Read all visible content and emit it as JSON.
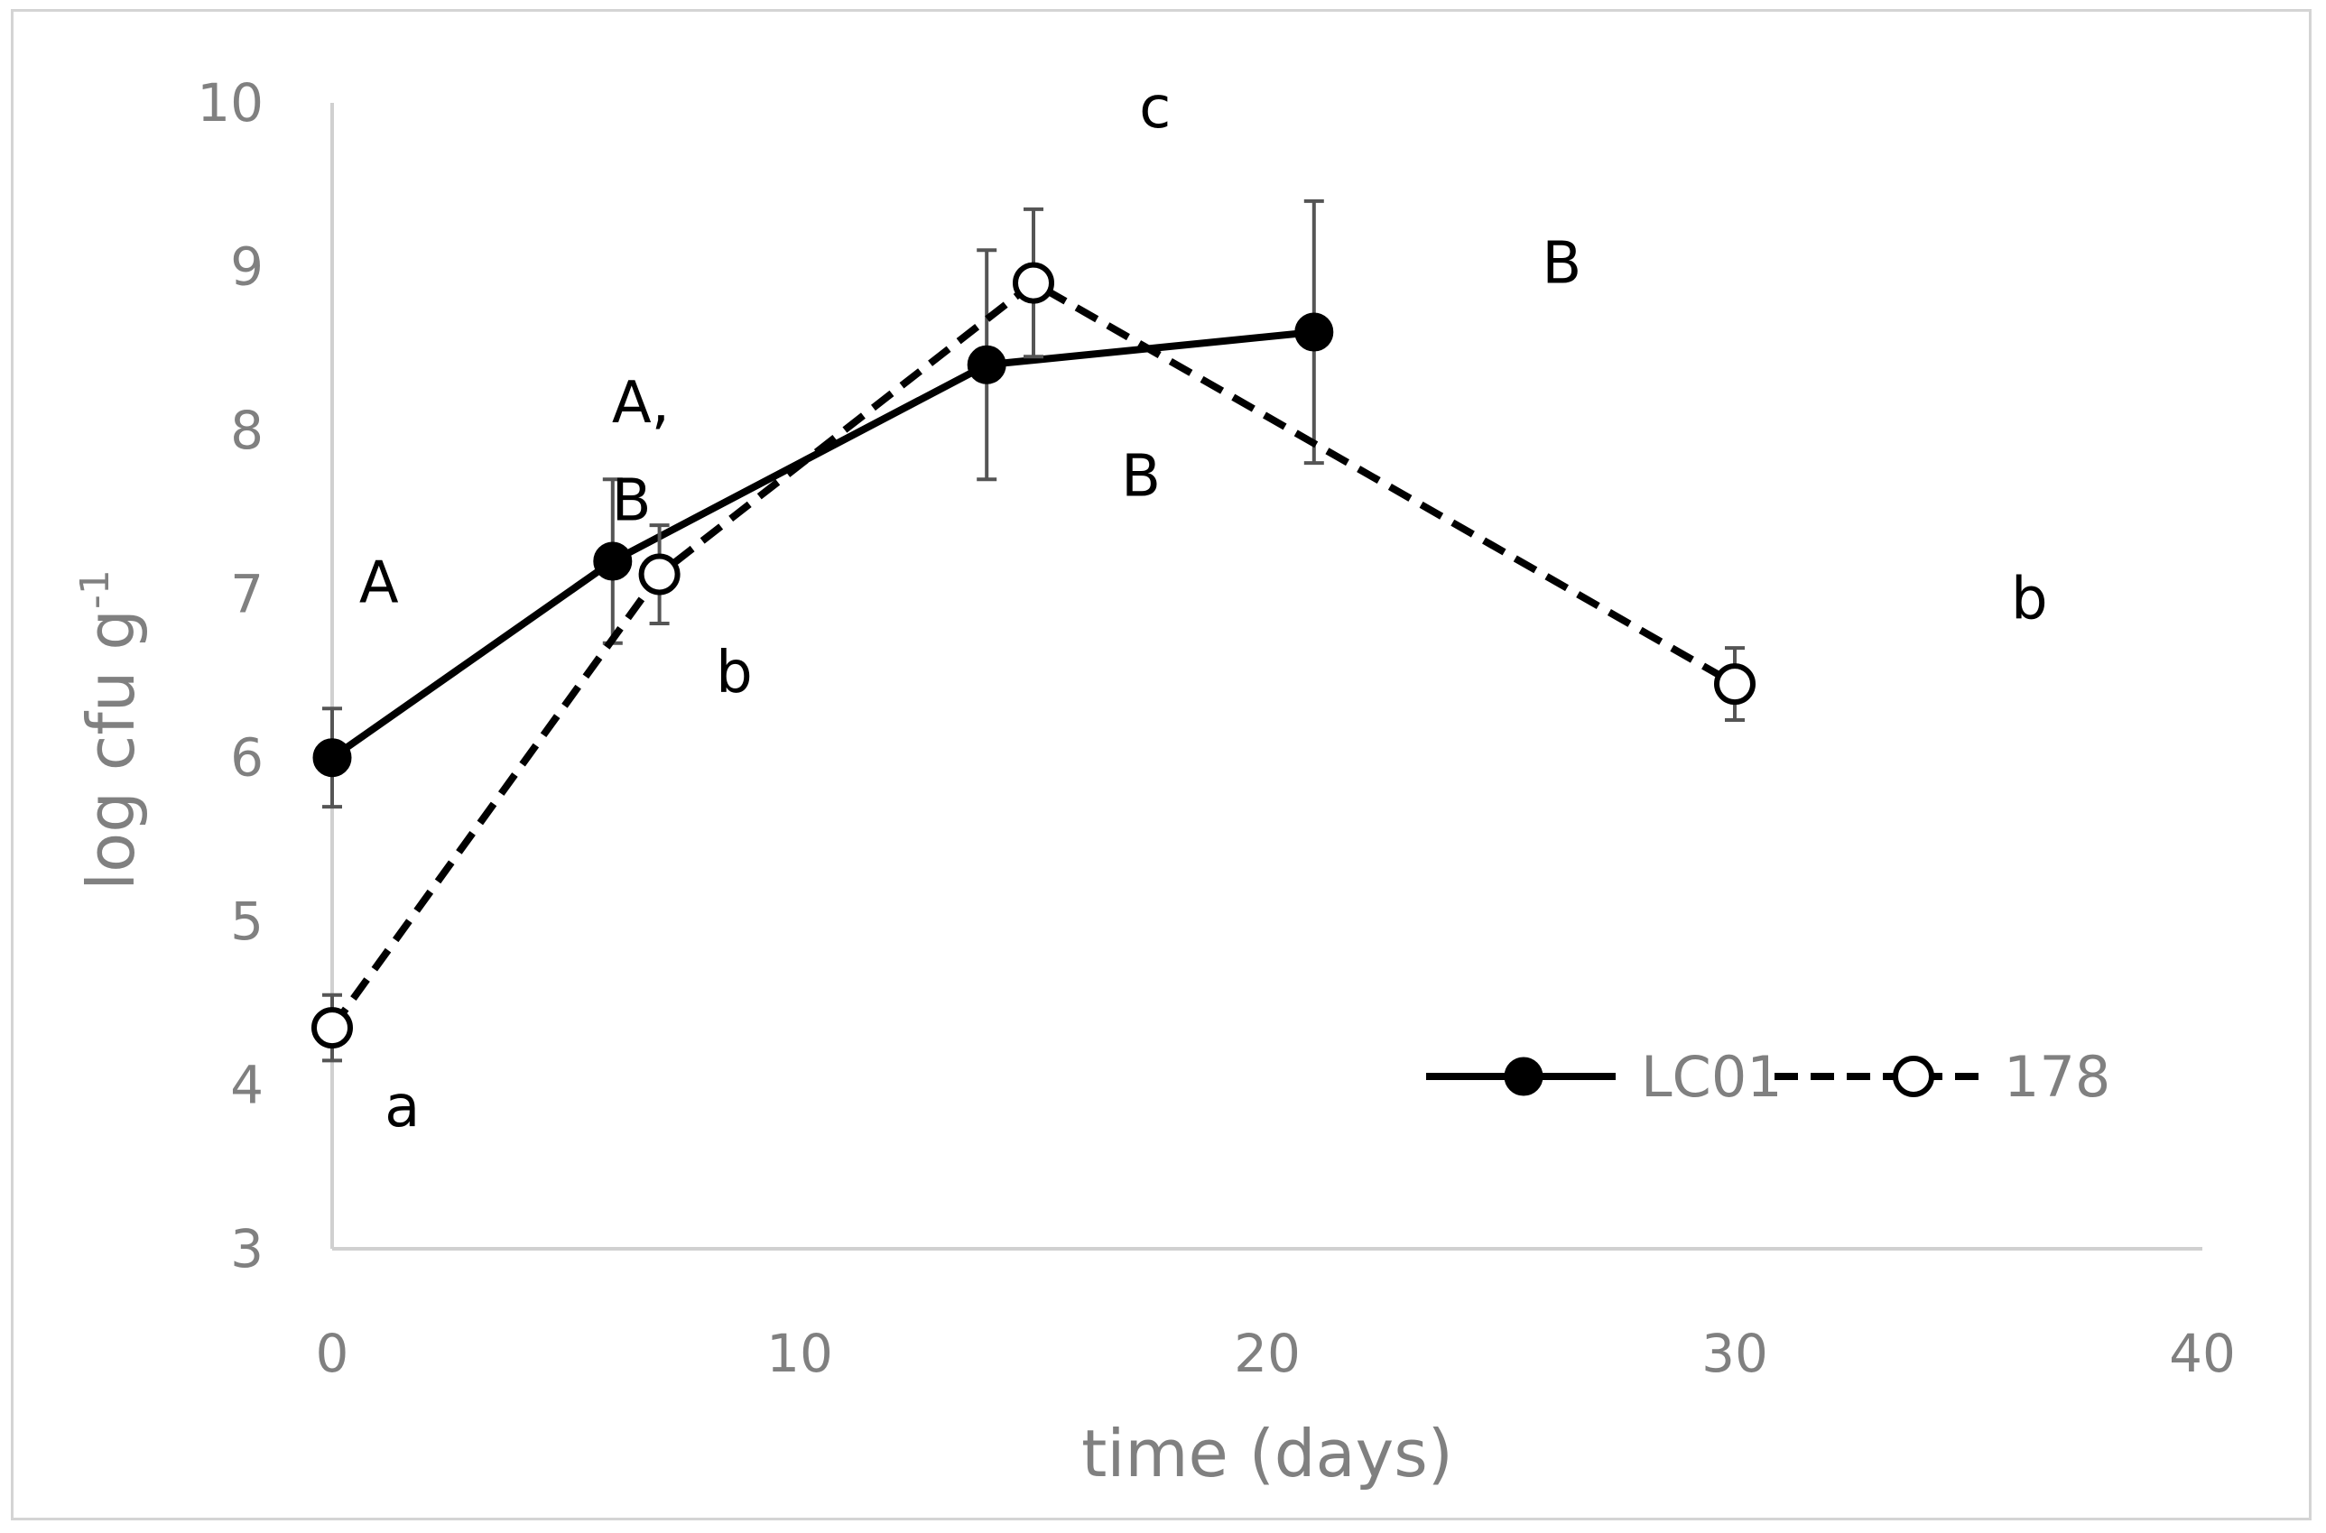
{
  "chart_data": {
    "type": "line",
    "title": "",
    "xlabel": "time (days)",
    "ylabel_main": "log cfu g",
    "ylabel_sup": "-1",
    "xlim": [
      0,
      40
    ],
    "ylim": [
      3,
      10
    ],
    "xticks": [
      0,
      10,
      20,
      30,
      40
    ],
    "yticks": [
      3,
      4,
      5,
      6,
      7,
      8,
      9,
      10
    ],
    "grid": false,
    "legend_position": "bottom-right",
    "series": [
      {
        "name": "LC01",
        "style": "solid",
        "marker": "filled-circle",
        "color": "#000000",
        "x": [
          0,
          6,
          14,
          21
        ],
        "y": [
          6.0,
          7.2,
          8.4,
          8.6
        ],
        "err": [
          0.3,
          0.5,
          0.7,
          0.8
        ]
      },
      {
        "name": "178",
        "style": "dashed",
        "marker": "open-circle",
        "color": "#000000",
        "x": [
          0,
          7,
          15,
          30
        ],
        "y": [
          4.35,
          7.12,
          8.9,
          6.45
        ],
        "err": [
          0.2,
          0.3,
          0.45,
          0.22
        ]
      }
    ],
    "annotations": [
      {
        "text": "A",
        "x": 1.0,
        "y": 6.95
      },
      {
        "text": "A,",
        "x": 6.6,
        "y": 8.05
      },
      {
        "text": "B",
        "x": 6.4,
        "y": 7.45
      },
      {
        "text": "b",
        "x": 8.6,
        "y": 6.4
      },
      {
        "text": "c",
        "x": 17.6,
        "y": 9.85
      },
      {
        "text": "B",
        "x": 17.3,
        "y": 7.6
      },
      {
        "text": "B",
        "x": 26.3,
        "y": 8.9
      },
      {
        "text": "b",
        "x": 36.3,
        "y": 6.85
      },
      {
        "text": "a",
        "x": 1.5,
        "y": 3.75
      }
    ]
  }
}
